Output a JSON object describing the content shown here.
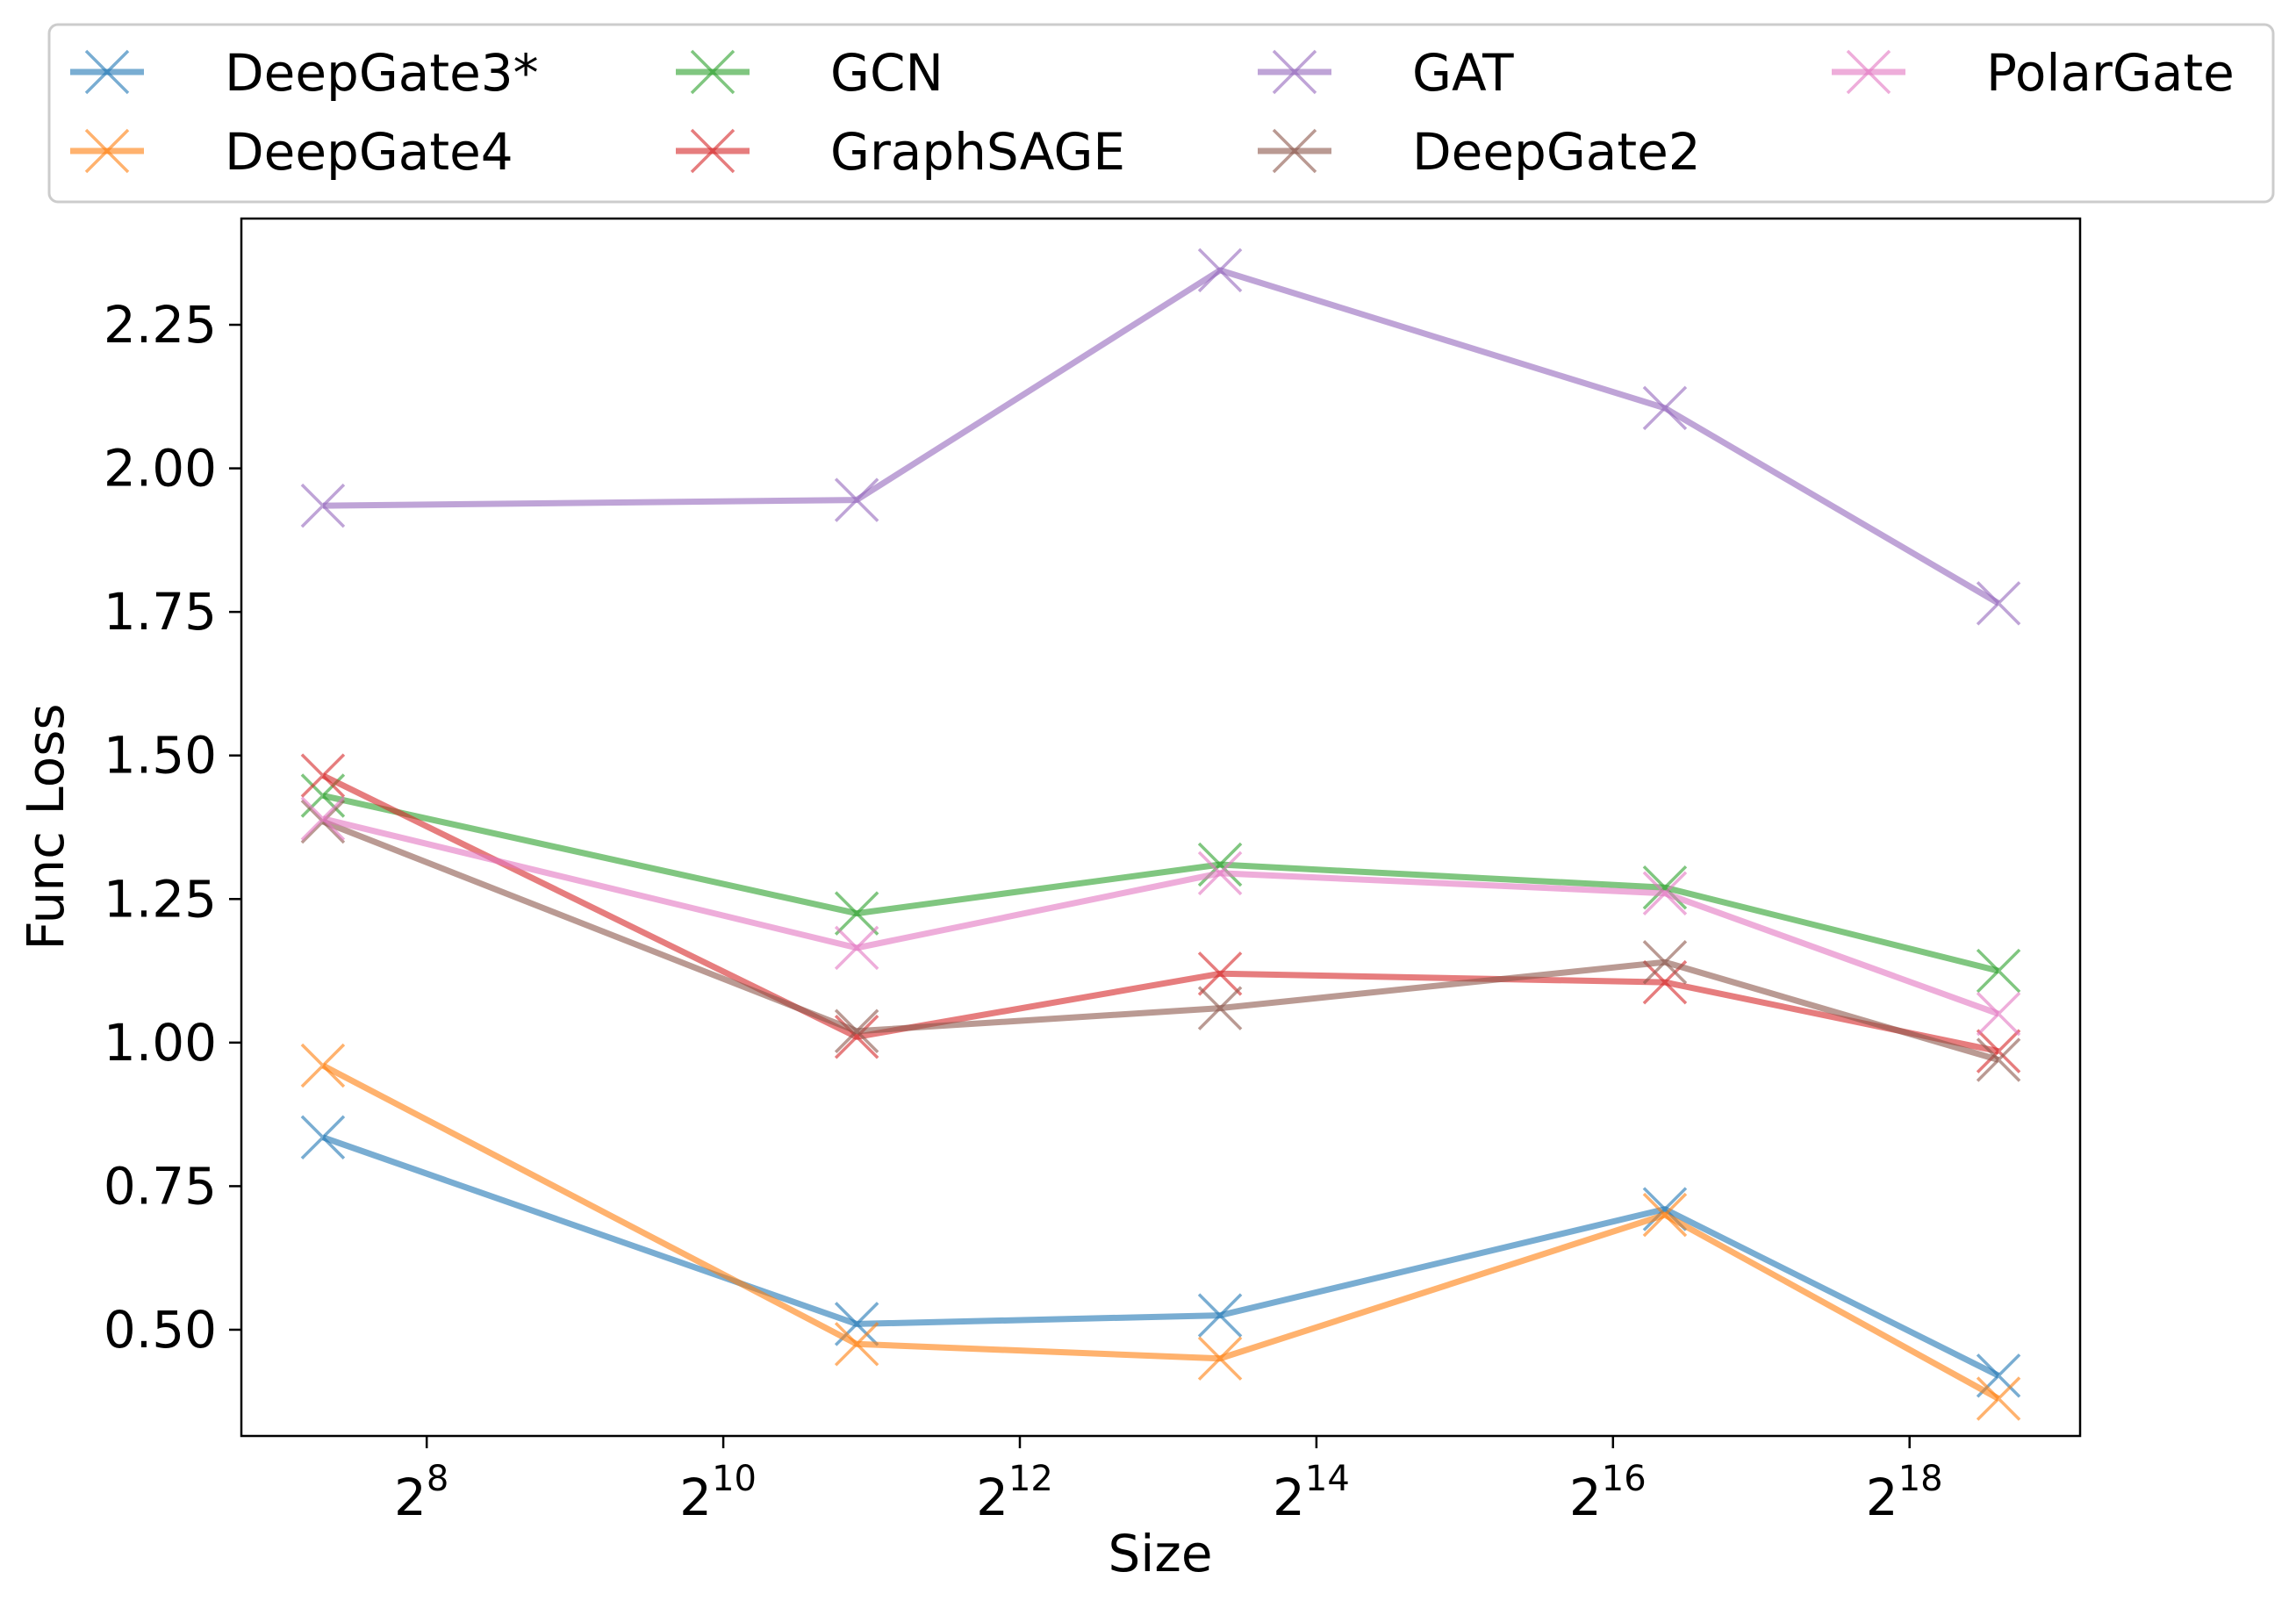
{
  "chart_data": {
    "type": "line",
    "title": "",
    "xlabel": "Size",
    "ylabel": "Func Loss",
    "x_scale": "log2",
    "x": [
      7.3,
      10.9,
      13.35,
      16.35,
      18.6
    ],
    "xlim": [
      6.75,
      19.15
    ],
    "ylim": [
      0.315,
      2.435
    ],
    "x_ticks": [
      {
        "value": 8,
        "base": "2",
        "exp": "8"
      },
      {
        "value": 10,
        "base": "2",
        "exp": "10"
      },
      {
        "value": 12,
        "base": "2",
        "exp": "12"
      },
      {
        "value": 14,
        "base": "2",
        "exp": "14"
      },
      {
        "value": 16,
        "base": "2",
        "exp": "16"
      },
      {
        "value": 18,
        "base": "2",
        "exp": "18"
      }
    ],
    "y_ticks": [
      {
        "value": 0.5,
        "label": "0.50"
      },
      {
        "value": 0.75,
        "label": "0.75"
      },
      {
        "value": 1.0,
        "label": "1.00"
      },
      {
        "value": 1.25,
        "label": "1.25"
      },
      {
        "value": 1.5,
        "label": "1.50"
      },
      {
        "value": 1.75,
        "label": "1.75"
      },
      {
        "value": 2.0,
        "label": "2.00"
      },
      {
        "value": 2.25,
        "label": "2.25"
      }
    ],
    "grid": false,
    "legend_position": "top",
    "series": [
      {
        "name": "DeepGate3*",
        "color": "#1f77b4",
        "values": [
          0.835,
          0.51,
          0.525,
          0.71,
          0.42
        ]
      },
      {
        "name": "DeepGate4",
        "color": "#ff7f0e",
        "values": [
          0.96,
          0.475,
          0.45,
          0.7,
          0.38
        ]
      },
      {
        "name": "GCN",
        "color": "#2ca02c",
        "values": [
          1.43,
          1.225,
          1.31,
          1.27,
          1.125
        ]
      },
      {
        "name": "GraphSAGE",
        "color": "#d62728",
        "values": [
          1.465,
          1.01,
          1.12,
          1.105,
          0.985
        ]
      },
      {
        "name": "GAT",
        "color": "#9467bd",
        "values": [
          1.935,
          1.945,
          2.345,
          2.105,
          1.765
        ]
      },
      {
        "name": "DeepGate2",
        "color": "#8c564b",
        "values": [
          1.385,
          1.02,
          1.06,
          1.14,
          0.97
        ]
      },
      {
        "name": "PolarGate",
        "color": "#e377c2",
        "values": [
          1.39,
          1.165,
          1.295,
          1.26,
          1.05
        ]
      }
    ]
  }
}
